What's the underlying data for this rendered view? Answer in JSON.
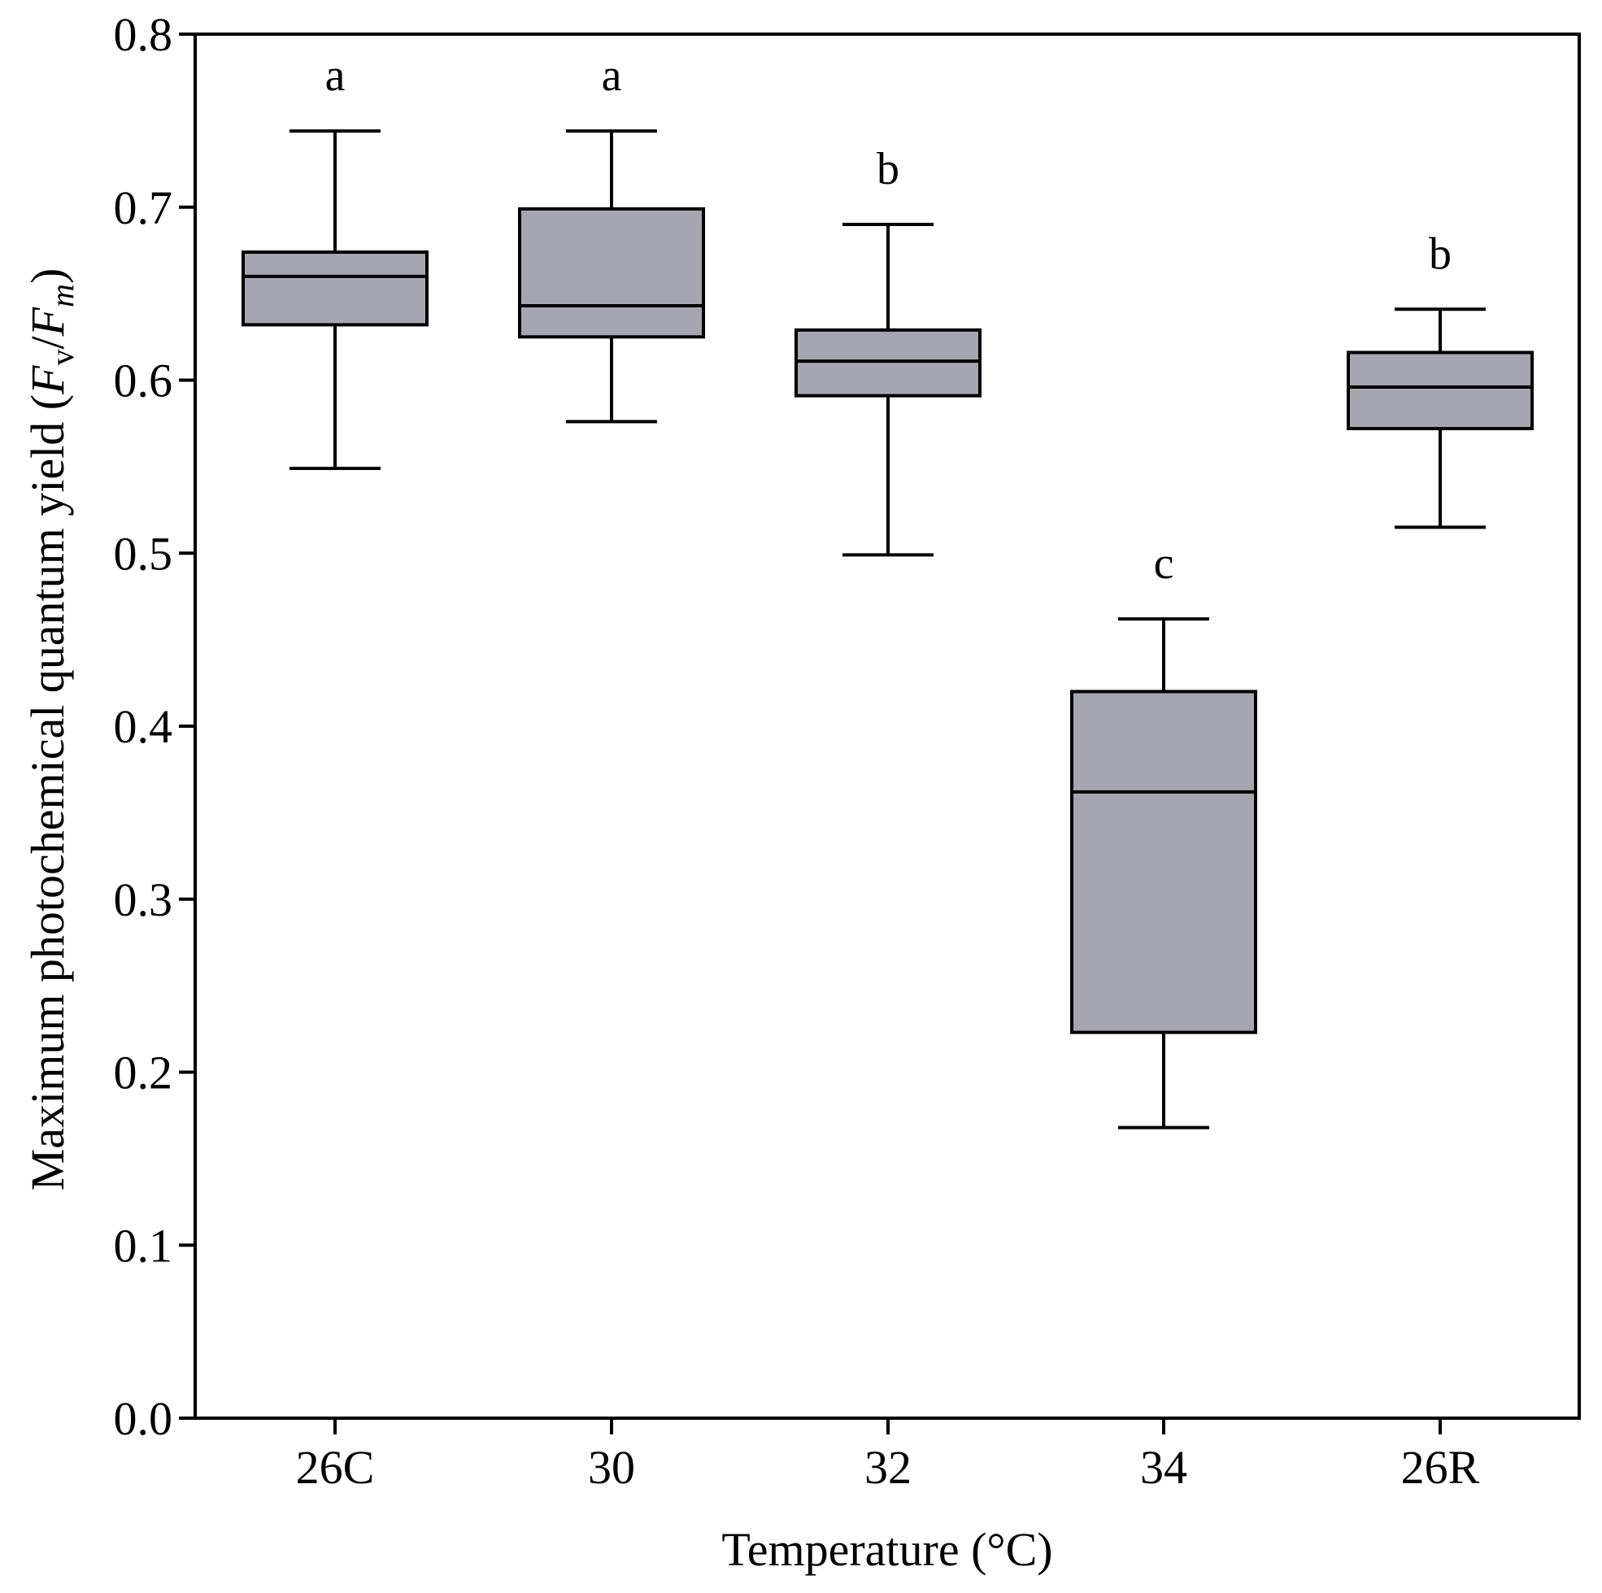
{
  "chart_data": {
    "type": "boxplot",
    "xlabel": "Temperature (°C)",
    "ylabel": "Maximum photochemical quantum yield (Fv/Fm)",
    "ylabel_parts": {
      "prefix": "Maximum photochemical quantum yield (",
      "f1": "F",
      "sub1": "v",
      "slash": "/",
      "f2": "F",
      "sub2": "m",
      "suffix": ")"
    },
    "ylim": [
      0.0,
      0.8
    ],
    "yticks": [
      "0.0",
      "0.1",
      "0.2",
      "0.3",
      "0.4",
      "0.5",
      "0.6",
      "0.7",
      "0.8"
    ],
    "categories": [
      "26C",
      "30",
      "32",
      "34",
      "26R"
    ],
    "boxes": [
      {
        "category": "26C",
        "whisker_low": 0.549,
        "q1": 0.632,
        "median": 0.66,
        "q3": 0.674,
        "whisker_high": 0.744,
        "letter": "a"
      },
      {
        "category": "30",
        "whisker_low": 0.576,
        "q1": 0.625,
        "median": 0.643,
        "q3": 0.699,
        "whisker_high": 0.744,
        "letter": "a"
      },
      {
        "category": "32",
        "whisker_low": 0.499,
        "q1": 0.591,
        "median": 0.611,
        "q3": 0.629,
        "whisker_high": 0.69,
        "letter": "b"
      },
      {
        "category": "34",
        "whisker_low": 0.168,
        "q1": 0.223,
        "median": 0.362,
        "q3": 0.42,
        "whisker_high": 0.462,
        "letter": "c"
      },
      {
        "category": "26R",
        "whisker_low": 0.515,
        "q1": 0.572,
        "median": 0.596,
        "q3": 0.616,
        "whisker_high": 0.641,
        "letter": "b"
      }
    ],
    "colors": {
      "box_fill": "#a5a6af",
      "line": "#000000"
    }
  }
}
